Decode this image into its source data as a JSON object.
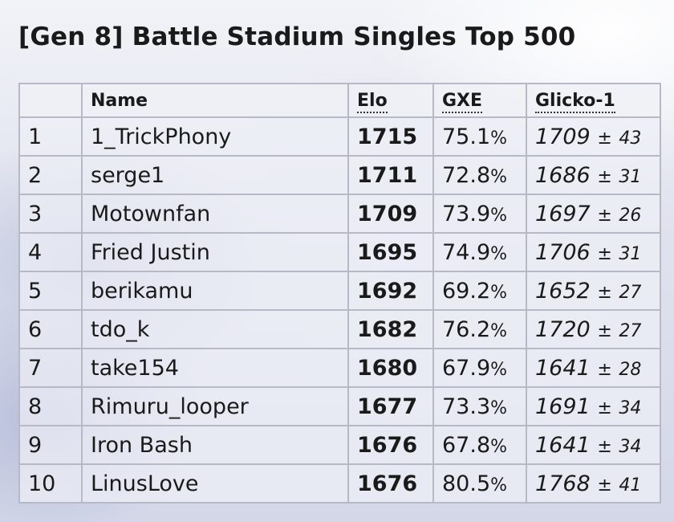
{
  "title": "[Gen 8] Battle Stadium Singles Top 500",
  "columns": {
    "rank": "",
    "name": "Name",
    "elo": "Elo",
    "gxe": "GXE",
    "glicko": "Glicko-1"
  },
  "rows": [
    {
      "rank": "1",
      "name": "1_TrickPhony",
      "elo": "1715",
      "gxe": "75.1",
      "gxe_unit": "%",
      "glicko": "1709",
      "pm": "±",
      "dev": "43"
    },
    {
      "rank": "2",
      "name": "serge1",
      "elo": "1711",
      "gxe": "72.8",
      "gxe_unit": "%",
      "glicko": "1686",
      "pm": "±",
      "dev": "31"
    },
    {
      "rank": "3",
      "name": "Motownfan",
      "elo": "1709",
      "gxe": "73.9",
      "gxe_unit": "%",
      "glicko": "1697",
      "pm": "±",
      "dev": "26"
    },
    {
      "rank": "4",
      "name": "Fried Justin",
      "elo": "1695",
      "gxe": "74.9",
      "gxe_unit": "%",
      "glicko": "1706",
      "pm": "±",
      "dev": "31"
    },
    {
      "rank": "5",
      "name": "berikamu",
      "elo": "1692",
      "gxe": "69.2",
      "gxe_unit": "%",
      "glicko": "1652",
      "pm": "±",
      "dev": "27"
    },
    {
      "rank": "6",
      "name": "tdo_k",
      "elo": "1682",
      "gxe": "76.2",
      "gxe_unit": "%",
      "glicko": "1720",
      "pm": "±",
      "dev": "27"
    },
    {
      "rank": "7",
      "name": "take154",
      "elo": "1680",
      "gxe": "67.9",
      "gxe_unit": "%",
      "glicko": "1641",
      "pm": "±",
      "dev": "28"
    },
    {
      "rank": "8",
      "name": "Rimuru_looper",
      "elo": "1677",
      "gxe": "73.3",
      "gxe_unit": "%",
      "glicko": "1691",
      "pm": "±",
      "dev": "34"
    },
    {
      "rank": "9",
      "name": "Iron Bash",
      "elo": "1676",
      "gxe": "67.8",
      "gxe_unit": "%",
      "glicko": "1641",
      "pm": "±",
      "dev": "34"
    },
    {
      "rank": "10",
      "name": "LinusLove",
      "elo": "1676",
      "gxe": "80.5",
      "gxe_unit": "%",
      "glicko": "1768",
      "pm": "±",
      "dev": "41"
    }
  ]
}
